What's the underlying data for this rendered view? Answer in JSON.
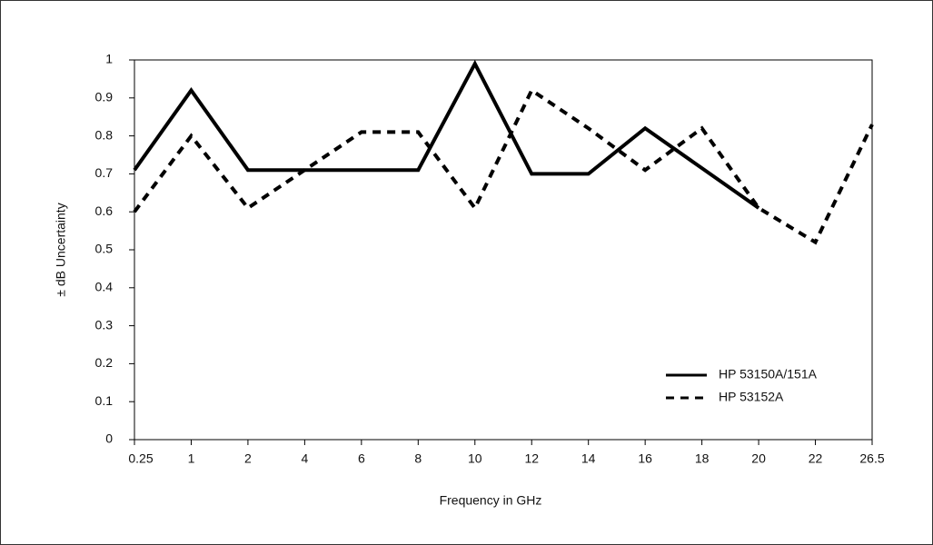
{
  "chart_data": {
    "type": "line",
    "x_label": "Frequency in GHz",
    "y_label": "± dB Uncertainty",
    "categories": [
      "0.25",
      "1",
      "2",
      "4",
      "6",
      "8",
      "10",
      "12",
      "14",
      "16",
      "18",
      "20",
      "22",
      "26.5"
    ],
    "series": [
      {
        "name": "HP 53150A/151A",
        "color": "#000000",
        "dash": "solid",
        "values": [
          0.71,
          0.92,
          0.71,
          0.71,
          0.71,
          0.71,
          0.99,
          0.7,
          0.7,
          0.82,
          0.715,
          0.61,
          null,
          null
        ]
      },
      {
        "name": "HP 53152A",
        "color": "#000000",
        "dash": "dashed",
        "values": [
          0.6,
          0.8,
          0.61,
          0.71,
          0.81,
          0.81,
          0.61,
          0.92,
          0.82,
          0.71,
          0.82,
          0.61,
          0.52,
          0.83
        ]
      }
    ],
    "ylim": [
      0,
      1
    ],
    "yticks": [
      0,
      0.1,
      0.2,
      0.3,
      0.4,
      0.5,
      0.6,
      0.7,
      0.8,
      0.9,
      1
    ],
    "legend": "lower right",
    "grid": false
  }
}
